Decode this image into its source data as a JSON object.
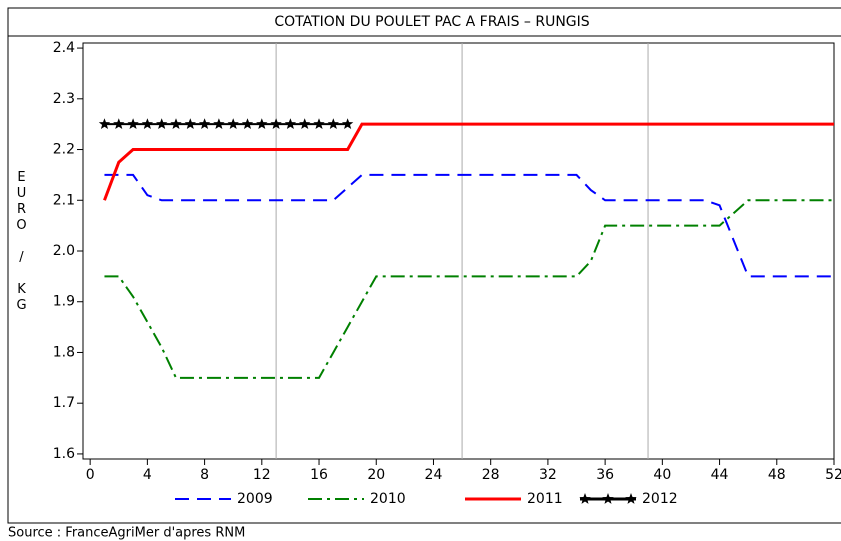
{
  "chart_data": {
    "type": "line",
    "title": "COTATION DU POULET PAC A FRAIS – RUNGIS",
    "ylabel": "EURO / KG",
    "source": "Source : FranceAgriMer d'apres RNM",
    "x": [
      1,
      2,
      3,
      4,
      5,
      6,
      7,
      8,
      9,
      10,
      11,
      12,
      13,
      14,
      15,
      16,
      17,
      18,
      19,
      20,
      21,
      22,
      23,
      24,
      25,
      26,
      27,
      28,
      29,
      30,
      31,
      32,
      33,
      34,
      35,
      36,
      37,
      38,
      39,
      40,
      41,
      42,
      43,
      44,
      45,
      46,
      47,
      48,
      49,
      50,
      51,
      52
    ],
    "series": [
      {
        "name": "2009",
        "color": "#0000ff",
        "dash": "14 8",
        "values": [
          2.15,
          2.15,
          2.15,
          2.11,
          2.1,
          2.1,
          2.1,
          2.1,
          2.1,
          2.1,
          2.1,
          2.1,
          2.1,
          2.1,
          2.1,
          2.1,
          2.1,
          2.125,
          2.15,
          2.15,
          2.15,
          2.15,
          2.15,
          2.15,
          2.15,
          2.15,
          2.15,
          2.15,
          2.15,
          2.15,
          2.15,
          2.15,
          2.15,
          2.15,
          2.12,
          2.1,
          2.1,
          2.1,
          2.1,
          2.1,
          2.1,
          2.1,
          2.1,
          2.09,
          2.02,
          1.95,
          1.95,
          1.95,
          1.95,
          1.95,
          1.95,
          1.95
        ]
      },
      {
        "name": "2010",
        "color": "#008000",
        "dash": "14 5 3 5",
        "values": [
          1.95,
          1.95,
          1.91,
          1.86,
          1.81,
          1.75,
          1.75,
          1.75,
          1.75,
          1.75,
          1.75,
          1.75,
          1.75,
          1.75,
          1.75,
          1.75,
          1.8,
          1.85,
          1.9,
          1.95,
          1.95,
          1.95,
          1.95,
          1.95,
          1.95,
          1.95,
          1.95,
          1.95,
          1.95,
          1.95,
          1.95,
          1.95,
          1.95,
          1.95,
          1.98,
          2.05,
          2.05,
          2.05,
          2.05,
          2.05,
          2.05,
          2.05,
          2.05,
          2.05,
          2.075,
          2.1,
          2.1,
          2.1,
          2.1,
          2.1,
          2.1,
          2.1
        ]
      },
      {
        "name": "2011",
        "color": "#ff0000",
        "values": [
          2.1,
          2.175,
          2.2,
          2.2,
          2.2,
          2.2,
          2.2,
          2.2,
          2.2,
          2.2,
          2.2,
          2.2,
          2.2,
          2.2,
          2.2,
          2.2,
          2.2,
          2.2,
          2.25,
          2.25,
          2.25,
          2.25,
          2.25,
          2.25,
          2.25,
          2.25,
          2.25,
          2.25,
          2.25,
          2.25,
          2.25,
          2.25,
          2.25,
          2.25,
          2.25,
          2.25,
          2.25,
          2.25,
          2.25,
          2.25,
          2.25,
          2.25,
          2.25,
          2.25,
          2.25,
          2.25,
          2.25,
          2.25,
          2.25,
          2.25,
          2.25,
          2.25
        ]
      },
      {
        "name": "2012",
        "color": "#000000",
        "marker": "star",
        "values": [
          2.25,
          2.25,
          2.25,
          2.25,
          2.25,
          2.25,
          2.25,
          2.25,
          2.25,
          2.25,
          2.25,
          2.25,
          2.25,
          2.25,
          2.25,
          2.25,
          2.25,
          2.25,
          null,
          null,
          null,
          null,
          null,
          null,
          null,
          null,
          null,
          null,
          null,
          null,
          null,
          null,
          null,
          null,
          null,
          null,
          null,
          null,
          null,
          null,
          null,
          null,
          null,
          null,
          null,
          null,
          null,
          null,
          null,
          null,
          null,
          null
        ]
      }
    ],
    "xlim": [
      -0.5,
      52
    ],
    "xticks": [
      0,
      4,
      8,
      12,
      16,
      20,
      24,
      28,
      32,
      36,
      40,
      44,
      48,
      52
    ],
    "xgrid": [
      13,
      26,
      39
    ],
    "ylim": [
      1.59,
      2.41
    ],
    "yticks": [
      1.6,
      1.7,
      1.8,
      1.9,
      {
        "value": 2,
        "label": "2.0"
      },
      2.1,
      2.2,
      2.3,
      2.4
    ]
  }
}
